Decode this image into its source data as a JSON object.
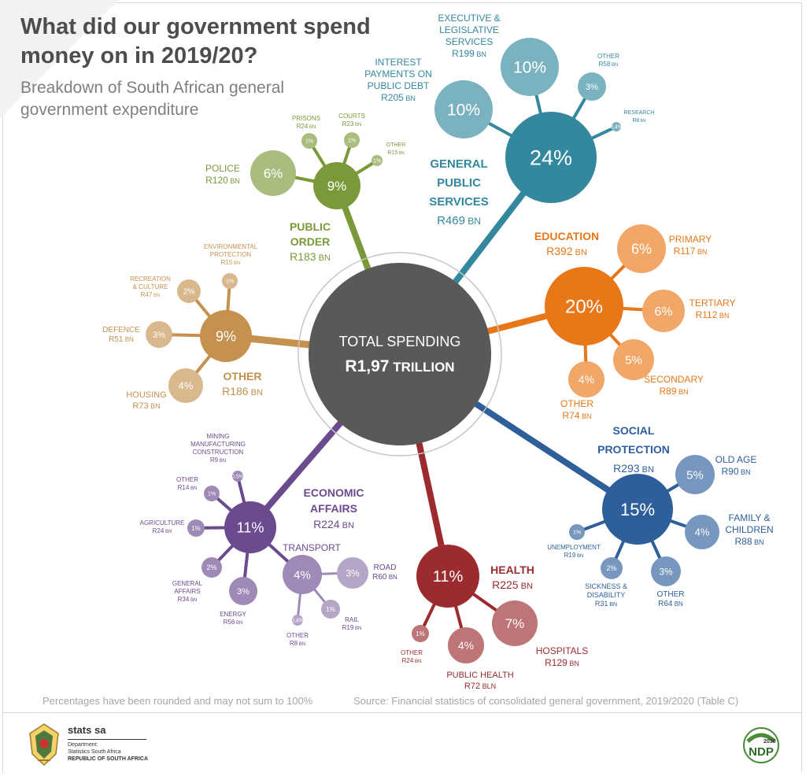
{
  "page": {
    "title": "What did our government spend money on in 2019/20?",
    "subtitle": "Breakdown of South African general government expenditure",
    "footnote": "Percentages have been rounded and may not sum to 100%",
    "source": "Source: Financial statistics of consolidated general government, 2019/2020 (Table C)"
  },
  "footer": {
    "org_name": "stats sa",
    "org_line1": "Department:",
    "org_line2": "Statistics South Africa",
    "org_line3": "REPUBLIC OF SOUTH AFRICA",
    "ndp_text": "NDP",
    "ndp_year": "2030"
  },
  "chart_data": {
    "type": "bubble",
    "title": "What did our government spend money on in 2019/20?",
    "subtitle": "Breakdown of South African general government expenditure",
    "total": {
      "label": "TOTAL SPENDING",
      "value_text": "R1,97",
      "unit": "TRILLION",
      "value_trillion_rand": 1.97
    },
    "categories": [
      {
        "id": "general-public-services",
        "name": "GENERAL PUBLIC SERVICES",
        "pct": 24,
        "pct_label": "24%",
        "amount": "R469",
        "unit": "BN",
        "amount_bn": 469,
        "color": "#33889e",
        "children": [
          {
            "id": "executive-legislative",
            "name": "EXECUTIVE & LEGISLATIVE SERVICES",
            "pct": 10,
            "pct_label": "10%",
            "amount": "R199",
            "unit": "BN",
            "amount_bn": 199
          },
          {
            "id": "interest-payments",
            "name": "INTEREST PAYMENTS ON PUBLIC DEBT",
            "pct": 10,
            "pct_label": "10%",
            "amount": "R205",
            "unit": "BN",
            "amount_bn": 205
          },
          {
            "id": "gps-other",
            "name": "OTHER",
            "pct": 3,
            "pct_label": "3%",
            "amount": "R58",
            "unit": "BN",
            "amount_bn": 58
          },
          {
            "id": "research",
            "name": "RESEARCH",
            "pct": 0.4,
            "pct_label": "0,4%",
            "amount": "R8",
            "unit": "BN",
            "amount_bn": 8
          }
        ]
      },
      {
        "id": "education",
        "name": "EDUCATION",
        "pct": 20,
        "pct_label": "20%",
        "amount": "R392",
        "unit": "BN",
        "amount_bn": 392,
        "color": "#e87717",
        "children": [
          {
            "id": "primary",
            "name": "PRIMARY",
            "pct": 6,
            "pct_label": "6%",
            "amount": "R117",
            "unit": "BN",
            "amount_bn": 117
          },
          {
            "id": "tertiary",
            "name": "TERTIARY",
            "pct": 6,
            "pct_label": "6%",
            "amount": "R112",
            "unit": "BN",
            "amount_bn": 112
          },
          {
            "id": "secondary",
            "name": "SECONDARY",
            "pct": 5,
            "pct_label": "5%",
            "amount": "R89",
            "unit": "BN",
            "amount_bn": 89
          },
          {
            "id": "education-other",
            "name": "OTHER",
            "pct": 4,
            "pct_label": "4%",
            "amount": "R74",
            "unit": "BN",
            "amount_bn": 74
          }
        ]
      },
      {
        "id": "social-protection",
        "name": "SOCIAL PROTECTION",
        "pct": 15,
        "pct_label": "15%",
        "amount": "R293",
        "unit": "BN",
        "amount_bn": 293,
        "color": "#2e5f9b",
        "children": [
          {
            "id": "old-age",
            "name": "OLD AGE",
            "pct": 5,
            "pct_label": "5%",
            "amount": "R90",
            "unit": "BN",
            "amount_bn": 90
          },
          {
            "id": "family-children",
            "name": "FAMILY & CHILDREN",
            "pct": 4,
            "pct_label": "4%",
            "amount": "R88",
            "unit": "BN",
            "amount_bn": 88
          },
          {
            "id": "social-other",
            "name": "OTHER",
            "pct": 3,
            "pct_label": "3%",
            "amount": "R64",
            "unit": "BN",
            "amount_bn": 64
          },
          {
            "id": "sickness-disability",
            "name": "SICKNESS & DISABILITY",
            "pct": 2,
            "pct_label": "2%",
            "amount": "R31",
            "unit": "BN",
            "amount_bn": 31
          },
          {
            "id": "unemployment",
            "name": "UNEMPLOYMENT",
            "pct": 1,
            "pct_label": "1%",
            "amount": "R19",
            "unit": "BN",
            "amount_bn": 19
          }
        ]
      },
      {
        "id": "health",
        "name": "HEALTH",
        "pct": 11,
        "pct_label": "11%",
        "amount": "R225",
        "unit": "BN",
        "amount_bn": 225,
        "color": "#9b2b2f",
        "children": [
          {
            "id": "hospitals",
            "name": "HOSPITALS",
            "pct": 7,
            "pct_label": "7%",
            "amount": "R129",
            "unit": "BN",
            "amount_bn": 129
          },
          {
            "id": "public-health",
            "name": "PUBLIC HEALTH",
            "pct": 4,
            "pct_label": "4%",
            "amount": "R72",
            "unit": "BLN",
            "amount_bn": 72
          },
          {
            "id": "health-other",
            "name": "OTHER",
            "pct": 1,
            "pct_label": "1%",
            "amount": "R24",
            "unit": "BN",
            "amount_bn": 24
          }
        ]
      },
      {
        "id": "economic-affairs",
        "name": "ECONOMIC AFFAIRS",
        "pct": 11,
        "pct_label": "11%",
        "amount": "R224",
        "unit": "BN",
        "amount_bn": 224,
        "color": "#6b4a8e",
        "children": [
          {
            "id": "transport",
            "name": "TRANSPORT",
            "pct": 4,
            "pct_label": "4%",
            "amount": "",
            "unit": "",
            "amount_bn": null,
            "children": [
              {
                "id": "road",
                "name": "ROAD",
                "pct": 3,
                "pct_label": "3%",
                "amount": "R60",
                "unit": "BN",
                "amount_bn": 60
              },
              {
                "id": "rail",
                "name": "RAIL",
                "pct": 1,
                "pct_label": "1%",
                "amount": "R19",
                "unit": "BN",
                "amount_bn": 19
              },
              {
                "id": "transport-other",
                "name": "OTHER",
                "pct": 0.4,
                "pct_label": "0,4%",
                "amount": "R8",
                "unit": "BN",
                "amount_bn": 8
              }
            ]
          },
          {
            "id": "energy",
            "name": "ENERGY",
            "pct": 3,
            "pct_label": "3%",
            "amount": "R56",
            "unit": "BN",
            "amount_bn": 56
          },
          {
            "id": "general-affairs",
            "name": "GENERAL AFFAIRS",
            "pct": 2,
            "pct_label": "2%",
            "amount": "R34",
            "unit": "BN",
            "amount_bn": 34
          },
          {
            "id": "agriculture",
            "name": "AGRICULTURE",
            "pct": 1,
            "pct_label": "1%",
            "amount": "R24",
            "unit": "BN",
            "amount_bn": 24
          },
          {
            "id": "economic-other",
            "name": "OTHER",
            "pct": 1,
            "pct_label": "1%",
            "amount": "R14",
            "unit": "BN",
            "amount_bn": 14
          },
          {
            "id": "mining",
            "name": "MINING MANUFACTURING CONSTRUCTION",
            "pct": 0.5,
            "pct_label": "0,5%",
            "amount": "R9",
            "unit": "BN",
            "amount_bn": 9
          }
        ]
      },
      {
        "id": "other",
        "name": "OTHER",
        "pct": 9,
        "pct_label": "9%",
        "amount": "R186",
        "unit": "BN",
        "amount_bn": 186,
        "color": "#c4914f",
        "children": [
          {
            "id": "housing",
            "name": "HOUSING",
            "pct": 4,
            "pct_label": "4%",
            "amount": "R73",
            "unit": "BN",
            "amount_bn": 73
          },
          {
            "id": "defence",
            "name": "DEFENCE",
            "pct": 3,
            "pct_label": "3%",
            "amount": "R51",
            "unit": "BN",
            "amount_bn": 51
          },
          {
            "id": "recreation-culture",
            "name": "RECREATION & CULTURE",
            "pct": 2,
            "pct_label": "2%",
            "amount": "R47",
            "unit": "BN",
            "amount_bn": 47
          },
          {
            "id": "environmental-protection",
            "name": "ENVIRONMENTAL PROTECTION",
            "pct": 1,
            "pct_label": "1%",
            "amount": "R15",
            "unit": "BN",
            "amount_bn": 15
          }
        ]
      },
      {
        "id": "public-order",
        "name": "PUBLIC ORDER",
        "pct": 9,
        "pct_label": "9%",
        "amount": "R183",
        "unit": "BN",
        "amount_bn": 183,
        "color": "#7a9a3a",
        "children": [
          {
            "id": "police",
            "name": "POLICE",
            "pct": 6,
            "pct_label": "6%",
            "amount": "R120",
            "unit": "BN",
            "amount_bn": 120
          },
          {
            "id": "prisons",
            "name": "PRISONS",
            "pct": 1,
            "pct_label": "1%",
            "amount": "R24",
            "unit": "BN",
            "amount_bn": 24
          },
          {
            "id": "courts",
            "name": "COURTS",
            "pct": 1,
            "pct_label": "1%",
            "amount": "R23",
            "unit": "BN",
            "amount_bn": 23
          },
          {
            "id": "public-order-other",
            "name": "OTHER",
            "pct": 1,
            "pct_label": "1%",
            "amount": "R15",
            "unit": "BN",
            "amount_bn": 15
          }
        ]
      }
    ]
  }
}
